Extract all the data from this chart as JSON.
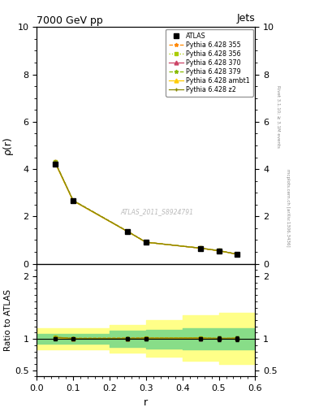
{
  "title": "7000 GeV pp",
  "title_right": "Jets",
  "xlabel": "r",
  "ylabel_main": "ρ(r)",
  "ylabel_ratio": "Ratio to ATLAS",
  "right_label_top": "Rivet 3.1.10; ≥ 3.1M events",
  "right_label_bot": "mcplots.cern.ch [arXiv:1306.3436]",
  "watermark": "ATLAS_2011_S8924791",
  "x_data": [
    0.05,
    0.1,
    0.25,
    0.3,
    0.45,
    0.5,
    0.55
  ],
  "atlas_y": [
    4.2,
    2.65,
    1.35,
    0.9,
    0.65,
    0.55,
    0.4
  ],
  "atlas_yerr": [
    0.05,
    0.04,
    0.03,
    0.02,
    0.02,
    0.02,
    0.015
  ],
  "pythia355_y": [
    4.32,
    2.68,
    1.37,
    0.915,
    0.66,
    0.555,
    0.405
  ],
  "pythia356_y": [
    4.31,
    2.67,
    1.36,
    0.91,
    0.66,
    0.555,
    0.405
  ],
  "pythia370_y": [
    4.3,
    2.66,
    1.36,
    0.91,
    0.655,
    0.552,
    0.402
  ],
  "pythia379_y": [
    4.31,
    2.675,
    1.365,
    0.912,
    0.661,
    0.554,
    0.404
  ],
  "pythia_ambt1_y": [
    4.28,
    2.655,
    1.355,
    0.908,
    0.658,
    0.552,
    0.402
  ],
  "pythia_z2_y": [
    4.31,
    2.67,
    1.36,
    0.91,
    0.66,
    0.555,
    0.405
  ],
  "xlim": [
    0.0,
    0.6
  ],
  "ylim_main": [
    0.0,
    10.0
  ],
  "ylim_ratio": [
    0.4,
    2.2
  ],
  "color_atlas": "#000000",
  "color_355": "#ff8800",
  "color_356": "#aacc00",
  "color_370": "#cc4466",
  "color_379": "#88bb00",
  "color_ambt1": "#ffcc00",
  "color_z2": "#888800",
  "band_x": [
    0.0,
    0.1,
    0.2,
    0.3,
    0.4,
    0.5,
    0.6
  ],
  "band_gy1": [
    0.92,
    0.92,
    0.87,
    0.85,
    0.83,
    0.83,
    0.83
  ],
  "band_gy2": [
    1.08,
    1.08,
    1.13,
    1.15,
    1.17,
    1.17,
    1.17
  ],
  "band_yy1": [
    0.83,
    0.83,
    0.78,
    0.72,
    0.65,
    0.6,
    0.6
  ],
  "band_yy2": [
    1.17,
    1.17,
    1.22,
    1.3,
    1.38,
    1.42,
    1.42
  ]
}
